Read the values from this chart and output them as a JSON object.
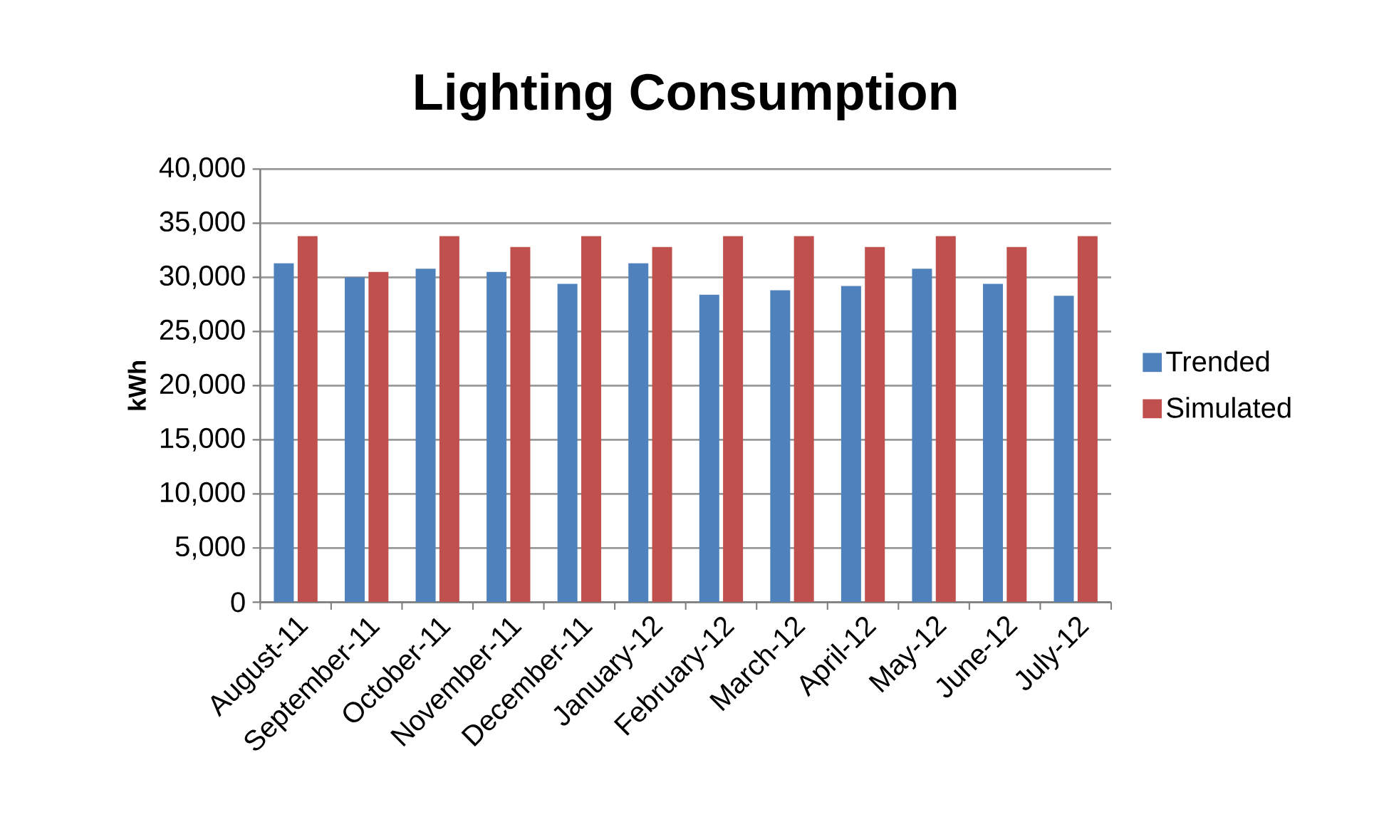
{
  "chart_data": {
    "type": "bar",
    "title": "Lighting Consumption",
    "ylabel": "kWh",
    "categories": [
      "August-11",
      "September-11",
      "October-11",
      "November-11",
      "December-11",
      "January-12",
      "February-12",
      "March-12",
      "April-12",
      "May-12",
      "June-12",
      "July-12"
    ],
    "series": [
      {
        "name": "Trended",
        "color": "#4f81bd",
        "values": [
          31300,
          30000,
          30800,
          30500,
          29400,
          31300,
          28400,
          28800,
          29200,
          30800,
          29400,
          28300
        ]
      },
      {
        "name": "Simulated",
        "color": "#c0504d",
        "values": [
          33800,
          30500,
          33800,
          32800,
          33800,
          32800,
          33800,
          33800,
          32800,
          33800,
          32800,
          33800
        ]
      }
    ],
    "ylim": [
      0,
      40000
    ],
    "yticks": [
      {
        "value": 0,
        "label": "0"
      },
      {
        "value": 5000,
        "label": "5,000"
      },
      {
        "value": 10000,
        "label": "10,000"
      },
      {
        "value": 15000,
        "label": "15,000"
      },
      {
        "value": 20000,
        "label": "20,000"
      },
      {
        "value": 25000,
        "label": "25,000"
      },
      {
        "value": 30000,
        "label": "30,000"
      },
      {
        "value": 35000,
        "label": "35,000"
      },
      {
        "value": 40000,
        "label": "40,000"
      }
    ],
    "grid": "y",
    "legend": "right"
  }
}
